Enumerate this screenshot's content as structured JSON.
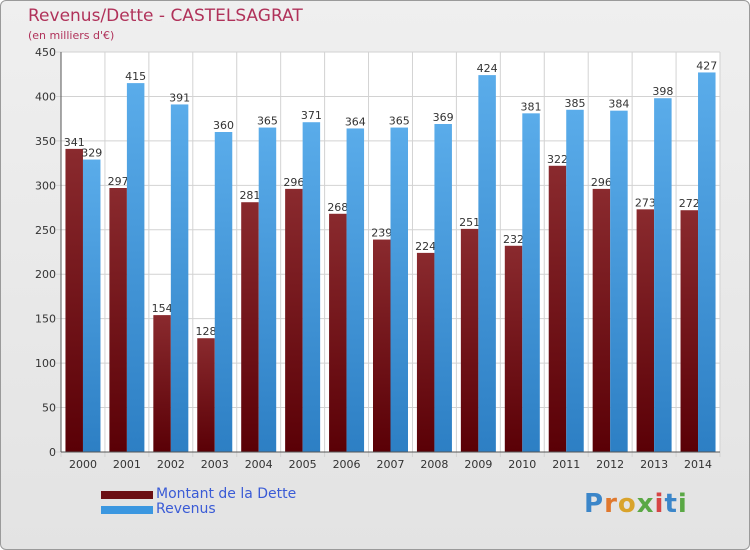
{
  "title": "Revenus/Dette - CASTELSAGRAT",
  "subtitle": "(en milliers d'€)",
  "brand": "Proxiti",
  "colors": {
    "dette": "#6b0f14",
    "revenus": "#3b97e0",
    "title": "#b0325a",
    "legend_text": "#3a5bd6"
  },
  "chart_data": {
    "type": "bar",
    "title": "Revenus/Dette - CASTELSAGRAT",
    "ylabel": "(en milliers d'€)",
    "xlabel": "",
    "ylim": [
      0,
      450
    ],
    "yticks": [
      0,
      50,
      100,
      150,
      200,
      250,
      300,
      350,
      400,
      450
    ],
    "categories": [
      "2000",
      "2001",
      "2002",
      "2003",
      "2004",
      "2005",
      "2006",
      "2007",
      "2008",
      "2009",
      "2010",
      "2011",
      "2012",
      "2013",
      "2014"
    ],
    "series": [
      {
        "name": "Montant de la Dette",
        "values": [
          341,
          297,
          154,
          128,
          281,
          296,
          268,
          239,
          224,
          251,
          232,
          322,
          296,
          273,
          272
        ]
      },
      {
        "name": "Revenus",
        "values": [
          329,
          415,
          391,
          360,
          365,
          371,
          364,
          365,
          369,
          424,
          381,
          385,
          384,
          398,
          427
        ]
      }
    ],
    "legend": "bottom-left",
    "grid": true
  }
}
